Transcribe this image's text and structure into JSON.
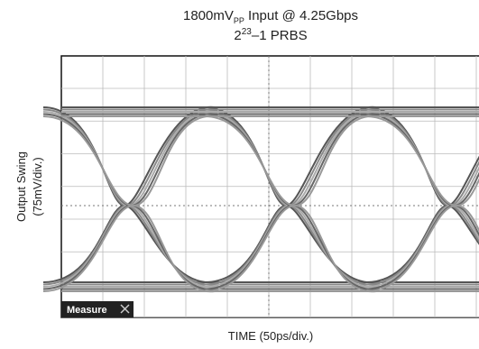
{
  "header": {
    "title_line1": {
      "main": "1800mV",
      "subscript": "PP",
      "rest": " Input @ 4.25Gbps"
    },
    "title_line2": {
      "base": "2",
      "superscript": "23",
      "rest": "–1 PRBS"
    }
  },
  "y_axis": {
    "line1": "Output Swing",
    "line2": "(75mV/div.)"
  },
  "x_axis": {
    "label": "TIME (50ps/div.)"
  },
  "button": {
    "label": "Measure"
  }
}
